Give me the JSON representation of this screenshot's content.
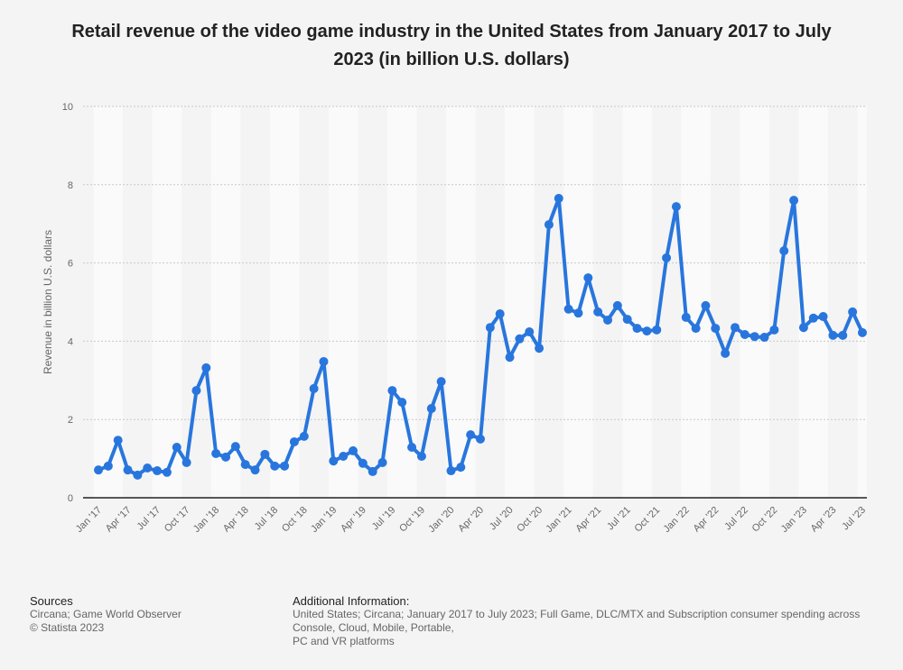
{
  "chart_data": {
    "type": "line",
    "title": "Retail revenue of the video game industry in the United States from January 2017 to July 2023 (in billion U.S. dollars)",
    "xlabel": "",
    "ylabel": "Revenue in billion U.S. dollars",
    "ylim": [
      0,
      10
    ],
    "yticks": [
      0,
      2,
      4,
      6,
      8,
      10
    ],
    "grid": true,
    "color": "#2876dd",
    "xtick_labels": [
      "Jan '17",
      "Apr '17",
      "Jul '17",
      "Oct '17",
      "Jan '18",
      "Apr '18",
      "Jul '18",
      "Oct '18",
      "Jan '19",
      "Apr '19",
      "Jul '19",
      "Oct '19",
      "Jan '20",
      "Apr '20",
      "Jul '20",
      "Oct '20",
      "Jan '21",
      "Apr '21",
      "Jul '21",
      "Oct '21",
      "Jan '22",
      "Apr '22",
      "Jul '22",
      "Oct '22",
      "Jan '23",
      "Apr '23",
      "Jul '23"
    ],
    "x_start": "Jan 2017",
    "x_end": "Jul 2023",
    "values": [
      0.71,
      0.81,
      1.47,
      0.71,
      0.58,
      0.76,
      0.69,
      0.65,
      1.29,
      0.9,
      2.74,
      3.32,
      1.13,
      1.04,
      1.31,
      0.85,
      0.71,
      1.11,
      0.81,
      0.81,
      1.43,
      1.57,
      2.79,
      3.48,
      0.94,
      1.06,
      1.2,
      0.88,
      0.67,
      0.9,
      2.74,
      2.44,
      1.29,
      1.06,
      2.28,
      2.97,
      0.69,
      0.78,
      1.61,
      1.5,
      4.35,
      4.7,
      3.59,
      4.06,
      4.24,
      3.82,
      6.98,
      7.65,
      4.82,
      4.72,
      5.62,
      4.75,
      4.54,
      4.91,
      4.56,
      4.33,
      4.26,
      4.29,
      6.13,
      7.44,
      4.61,
      4.33,
      4.91,
      4.33,
      3.69,
      4.35,
      4.17,
      4.12,
      4.1,
      4.29,
      6.31,
      7.6,
      4.35,
      4.59,
      4.63,
      4.15,
      4.15,
      4.75,
      4.22
    ]
  },
  "footer": {
    "sources_heading": "Sources",
    "sources_lines": [
      "Circana; Game World Observer",
      "© Statista 2023"
    ],
    "info_heading": "Additional Information:",
    "info_lines": [
      "United States; Circana; January 2017 to July 2023; Full Game, DLC/MTX and Subscription consumer spending across Console, Cloud, Mobile, Portable,",
      "PC and VR platforms"
    ]
  }
}
